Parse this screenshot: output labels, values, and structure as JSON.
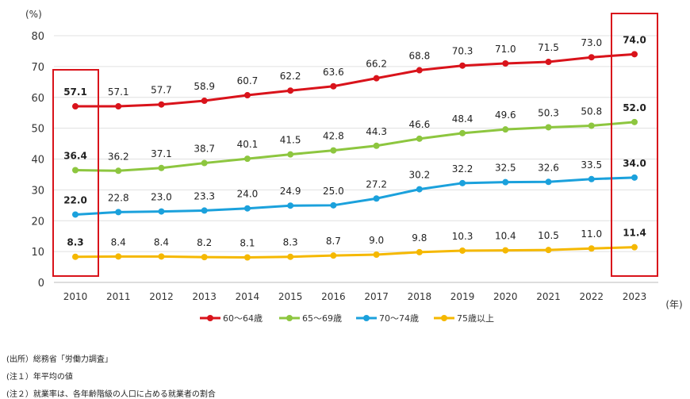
{
  "chart_data": {
    "type": "line",
    "ylabel": "(%)",
    "xlabel": "(年)",
    "ylim": [
      0,
      80
    ],
    "yticks": [
      0,
      10,
      20,
      30,
      40,
      50,
      60,
      70,
      80
    ],
    "grid": true,
    "legend_position": "bottom",
    "categories": [
      "2010",
      "2011",
      "2012",
      "2013",
      "2014",
      "2015",
      "2016",
      "2017",
      "2018",
      "2019",
      "2020",
      "2021",
      "2022",
      "2023"
    ],
    "highlighted_categories": [
      "2010",
      "2023"
    ],
    "series": [
      {
        "name": "60～64歳",
        "color": "#d9131b",
        "values": [
          57.1,
          57.1,
          57.7,
          58.9,
          60.7,
          62.2,
          63.6,
          66.2,
          68.8,
          70.3,
          71.0,
          71.5,
          73.0,
          74.0
        ]
      },
      {
        "name": "65～69歳",
        "color": "#8dc63f",
        "values": [
          36.4,
          36.2,
          37.1,
          38.7,
          40.1,
          41.5,
          42.8,
          44.3,
          46.6,
          48.4,
          49.6,
          50.3,
          50.8,
          52.0
        ]
      },
      {
        "name": "70～74歳",
        "color": "#1ba1dc",
        "values": [
          22.0,
          22.8,
          23.0,
          23.3,
          24.0,
          24.9,
          25.0,
          27.2,
          30.2,
          32.2,
          32.5,
          32.6,
          33.5,
          34.0
        ]
      },
      {
        "name": "75歳以上",
        "color": "#f5b800",
        "values": [
          8.3,
          8.4,
          8.4,
          8.2,
          8.1,
          8.3,
          8.7,
          9.0,
          9.8,
          10.3,
          10.4,
          10.5,
          11.0,
          11.4
        ]
      }
    ]
  },
  "notes": [
    "(出所）総務省「労働力調査」",
    "(注１）年平均の値",
    "(注２）就業率は、各年齢階級の人口に占める就業者の割合"
  ]
}
